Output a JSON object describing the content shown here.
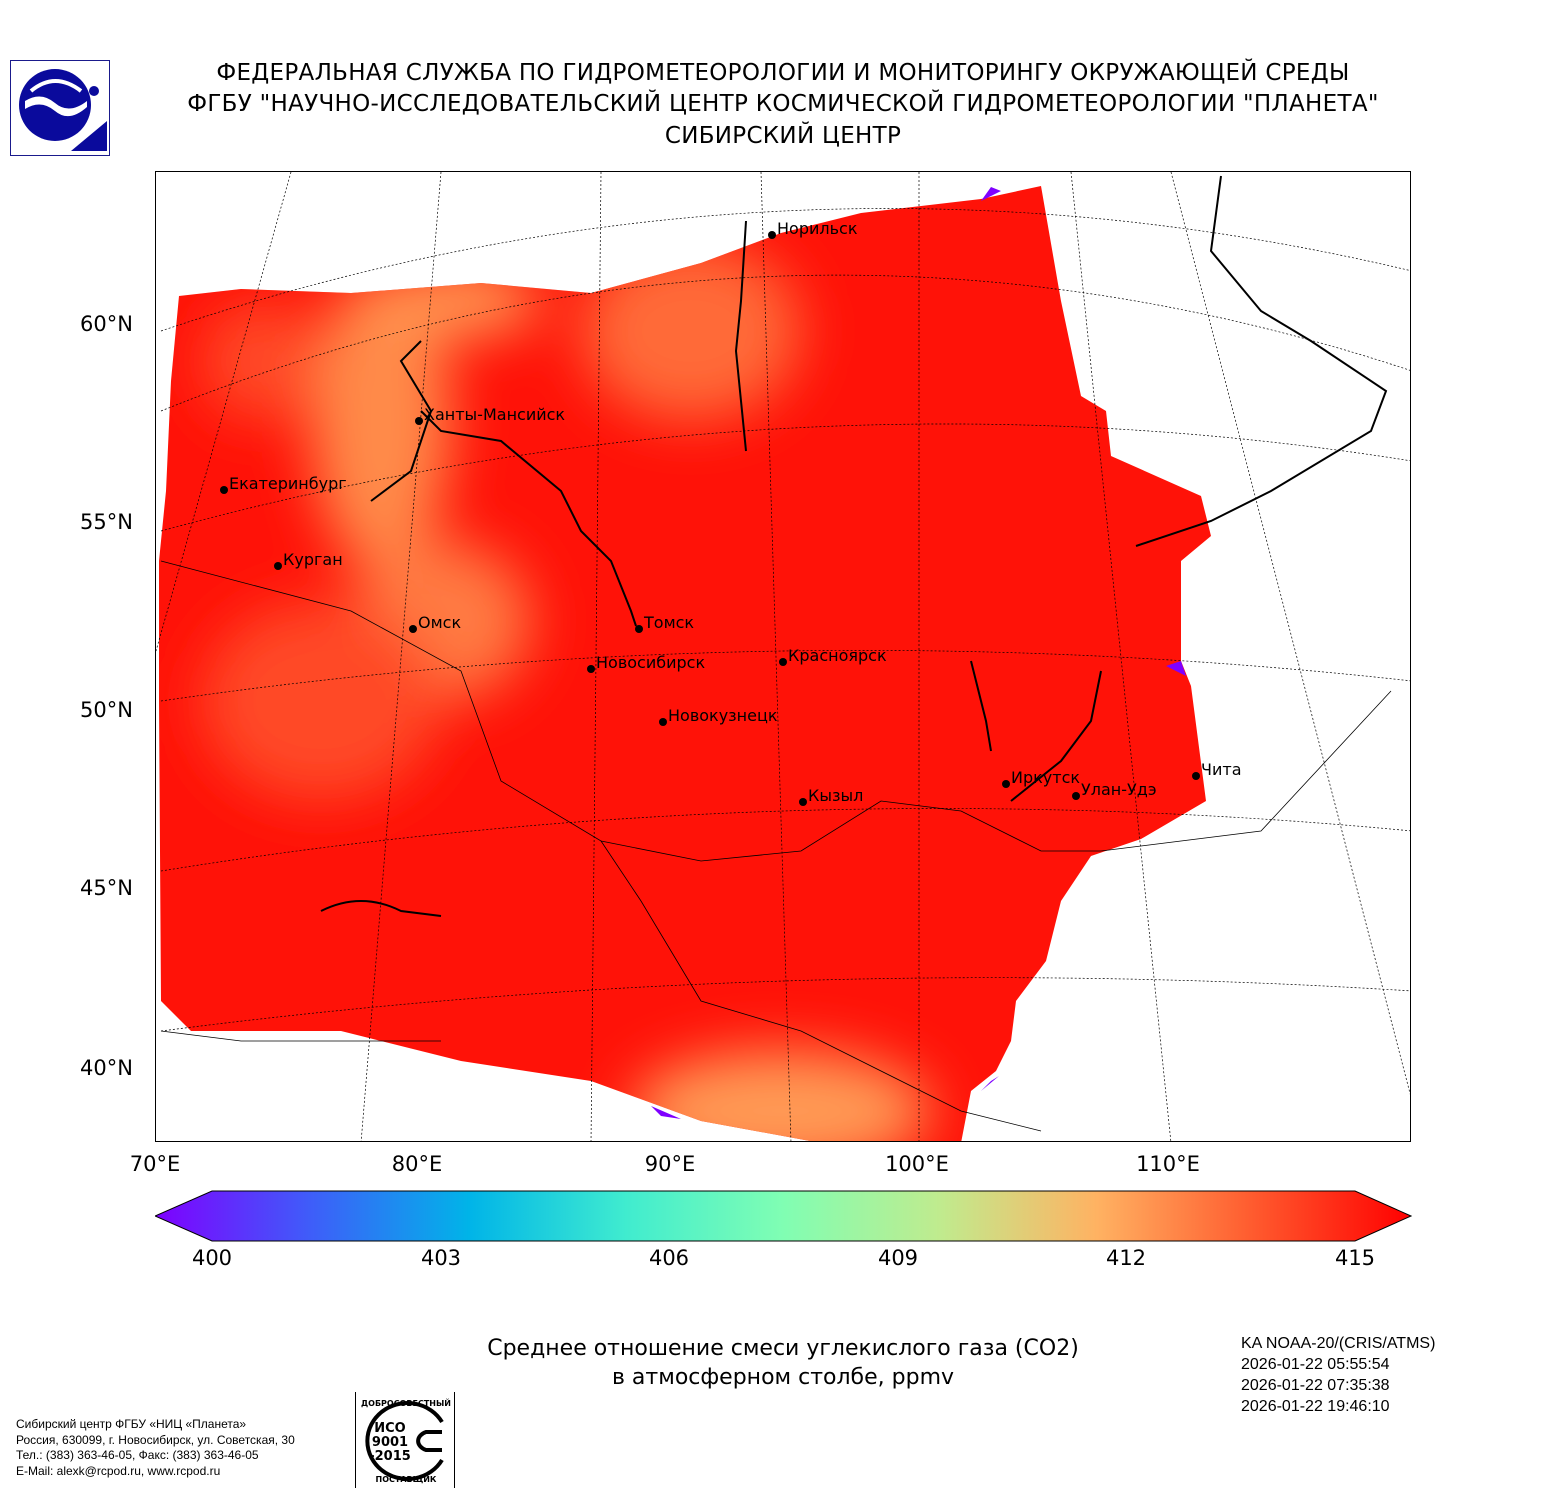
{
  "header": {
    "line1": "ФЕДЕРАЛЬНАЯ СЛУЖБА ПО ГИДРОМЕТЕОРОЛОГИИ И МОНИТОРИНГУ ОКРУЖАЮЩЕЙ СРЕДЫ",
    "line2": "ФГБУ \"НАУЧНО-ИССЛЕДОВАТЕЛЬСКИЙ ЦЕНТР КОСМИЧЕСКОЙ ГИДРОМЕТЕОРОЛОГИИ \"ПЛАНЕТА\"",
    "line3": "СИБИРСКИЙ ЦЕНТР"
  },
  "map": {
    "lat_labels": [
      "60°N",
      "55°N",
      "50°N",
      "45°N",
      "40°N"
    ],
    "lon_labels": [
      "70°E",
      "80°E",
      "90°E",
      "100°E",
      "110°E"
    ],
    "cities": [
      "Норильск",
      "Ханты-Мансийск",
      "Екатеринбург",
      "Курган",
      "Омск",
      "Томск",
      "Новосибирск",
      "Красноярск",
      "Новокузнецк",
      "Иркутск",
      "Улан-Удэ",
      "Чита",
      "Кызыл"
    ]
  },
  "colorbar": {
    "ticks": [
      "400",
      "403",
      "406",
      "409",
      "412",
      "415"
    ],
    "min": 400,
    "max": 415,
    "colors": [
      "#7f00ff",
      "#3e5ef9",
      "#00b4e8",
      "#40eccf",
      "#80feb3",
      "#c0eb8e",
      "#ffb262",
      "#ff5a2e",
      "#ff0000"
    ]
  },
  "caption": {
    "line1": "Среднее отношение смеси углекислого газа (CO2)",
    "line2": "в атмосферном столбе, ppmv"
  },
  "satellite": {
    "name": "KA NOAA-20/(CRIS/ATMS)",
    "times": [
      "2026-01-22 05:55:54",
      "2026-01-22 07:35:38",
      "2026-01-22 19:46:10"
    ]
  },
  "footer": {
    "lines": [
      "Сибирский центр ФГБУ «НИЦ «Планета»",
      "Россия, 630099, г. Новосибирск, ул. Советская, 30",
      "Тел.: (383) 363-46-05, Факс: (383) 363-46-05",
      "E-Mail: alexk@rcpod.ru, www.rcpod.ru"
    ]
  },
  "iso_badge": {
    "top": "ДОБРОСОВЕСТНЫЙ",
    "mid": "ИСО 9001 -2015",
    "bottom": "ПОСТАВЩИК"
  }
}
